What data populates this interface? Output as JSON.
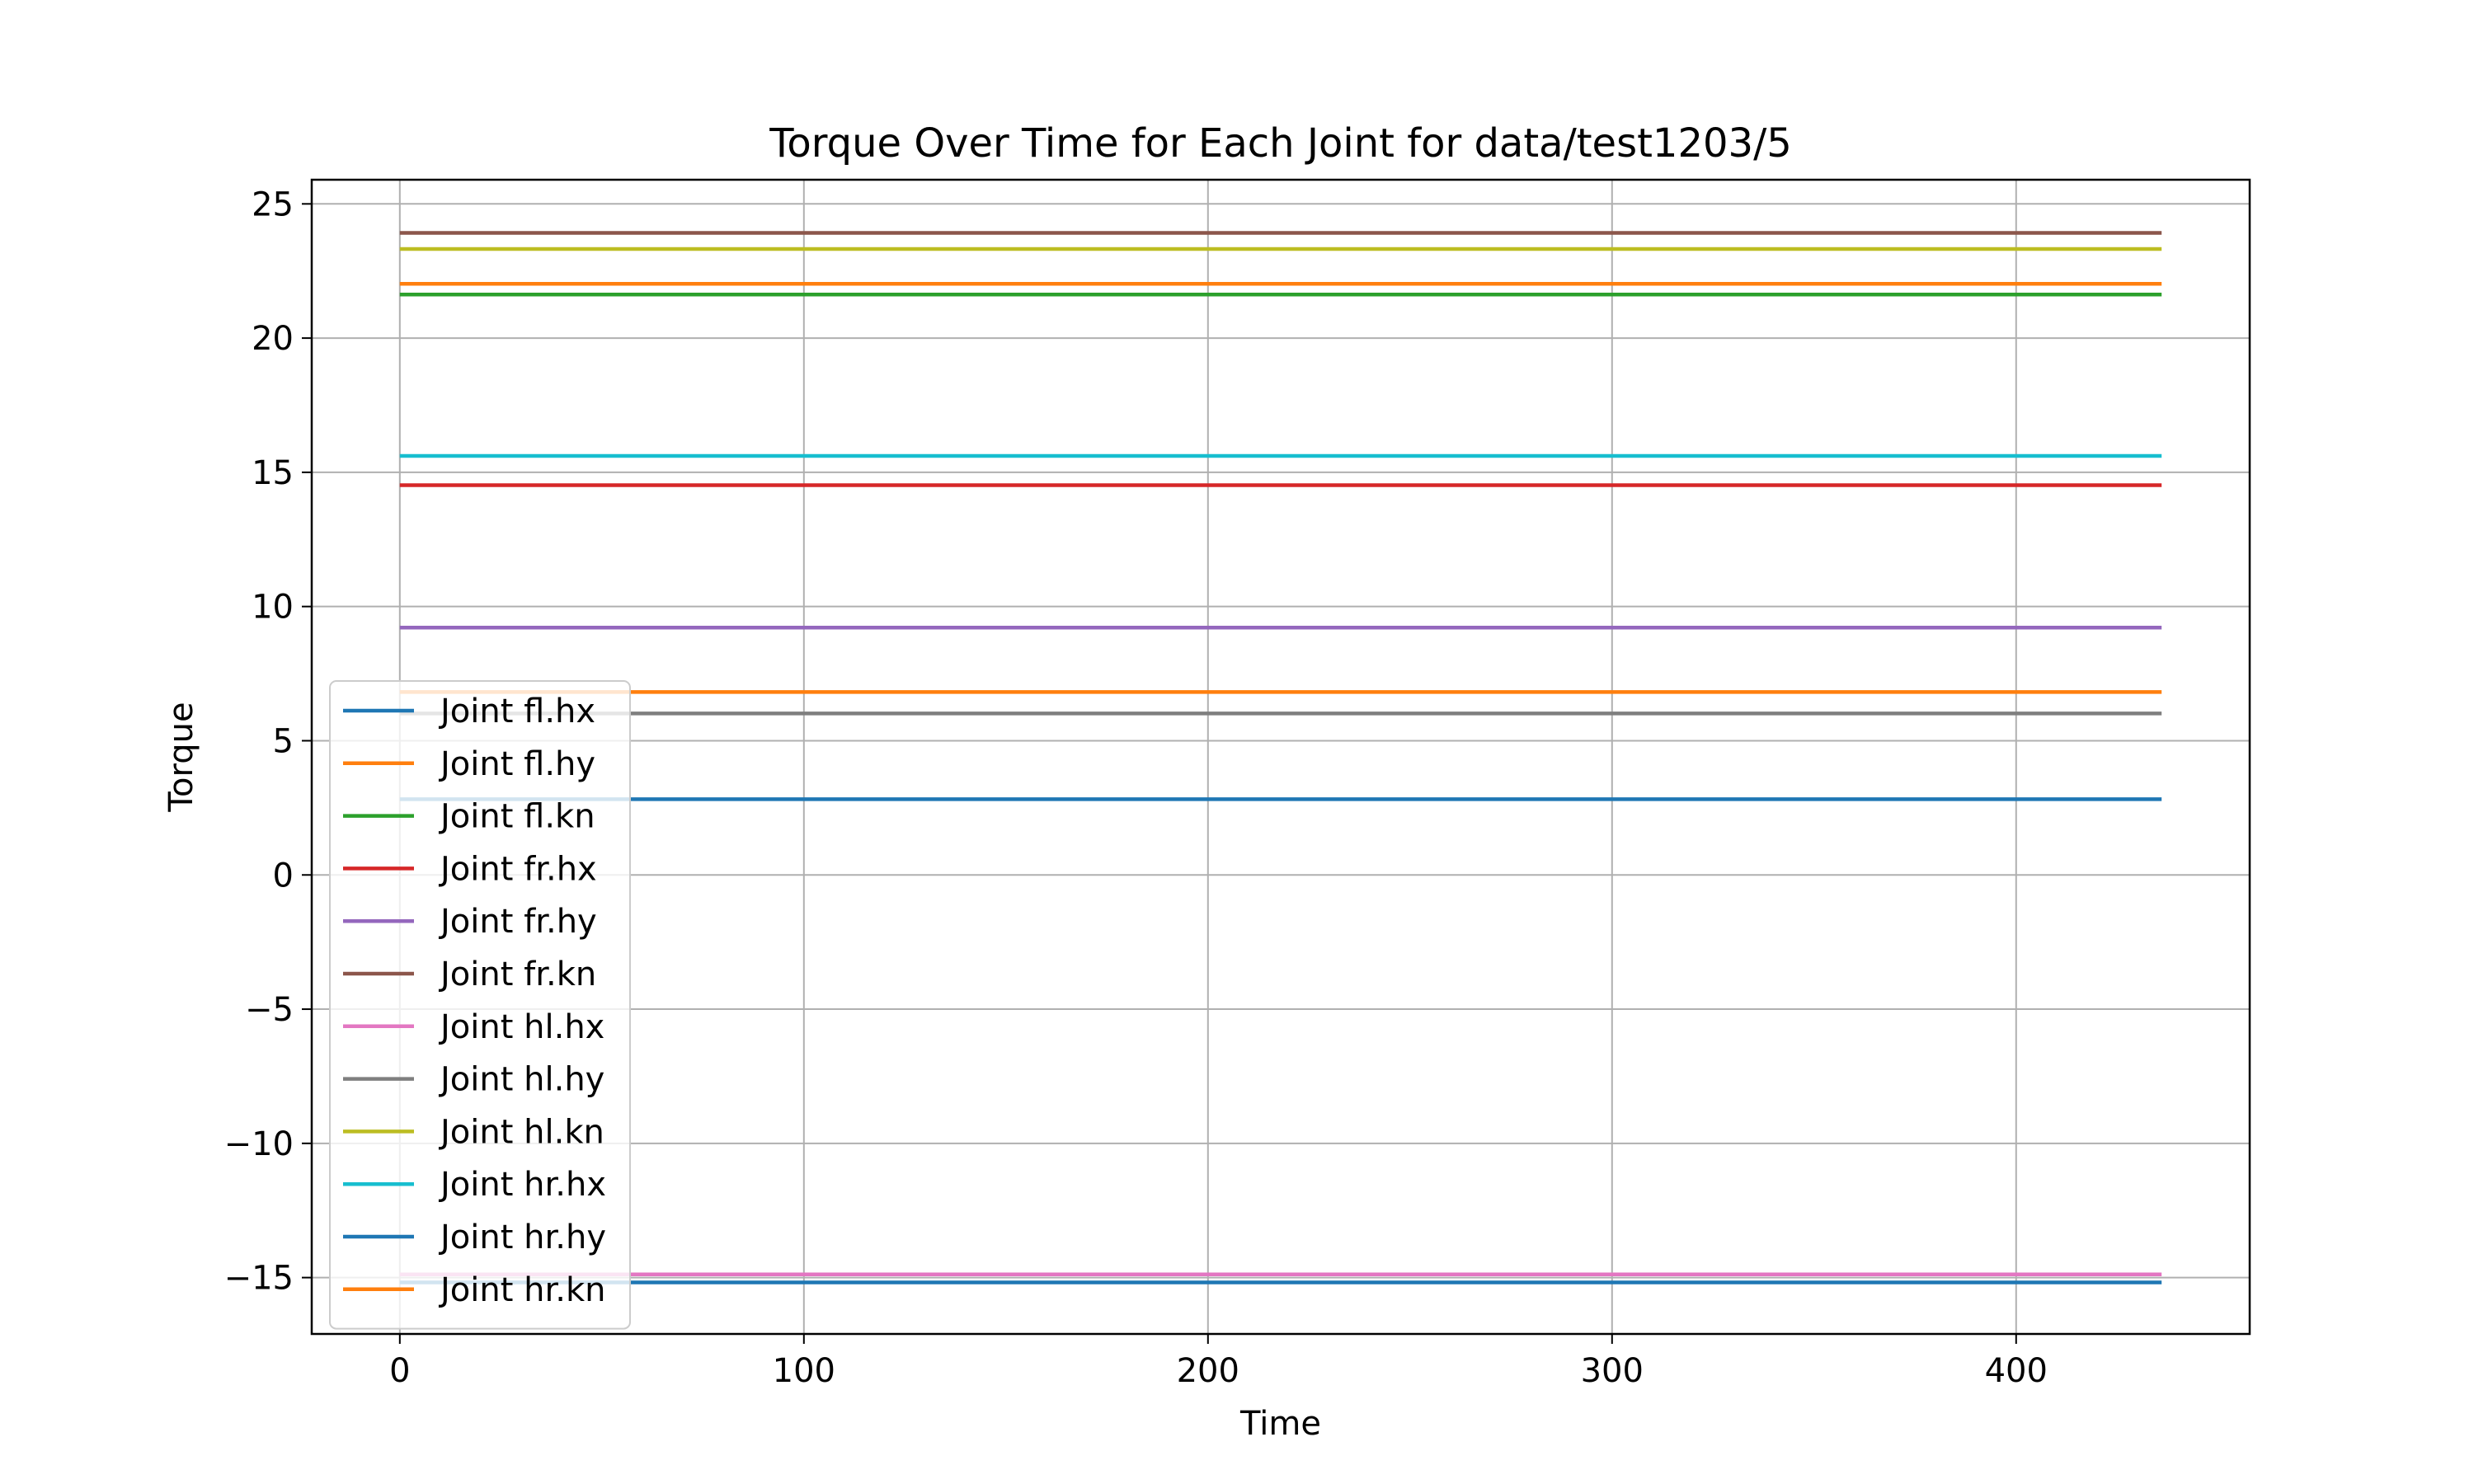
{
  "chart_data": {
    "type": "line",
    "title": "Torque Over Time for Each Joint for data/test1203/5",
    "xlabel": "Time",
    "ylabel": "Torque",
    "xlim": [
      -21.8,
      457.8
    ],
    "ylim": [
      -17.1,
      25.9
    ],
    "xticks": [
      0,
      100,
      200,
      300,
      400
    ],
    "yticks": [
      -15,
      -10,
      -5,
      0,
      5,
      10,
      15,
      20,
      25
    ],
    "xtick_labels": [
      "0",
      "100",
      "200",
      "300",
      "400"
    ],
    "ytick_labels": [
      "−15",
      "−10",
      "−5",
      "0",
      "5",
      "10",
      "15",
      "20",
      "25"
    ],
    "grid": true,
    "legend_position": "lower-left",
    "x_range": [
      0,
      436
    ],
    "series": [
      {
        "name": "Joint fl.hx",
        "color": "#1f77b4",
        "level": 2.8,
        "noise": 0.04
      },
      {
        "name": "Joint fl.hy",
        "color": "#ff7f0e",
        "level": 6.8,
        "noise": 0.03
      },
      {
        "name": "Joint fl.kn",
        "color": "#2ca02c",
        "level": 21.6,
        "noise": 0.05
      },
      {
        "name": "Joint fr.hx",
        "color": "#d62728",
        "level": 14.5,
        "noise": 0.04
      },
      {
        "name": "Joint fr.hy",
        "color": "#9467bd",
        "level": 9.2,
        "noise": 0.03
      },
      {
        "name": "Joint fr.kn",
        "color": "#8c564b",
        "level": 23.9,
        "noise": 0.04
      },
      {
        "name": "Joint hl.hx",
        "color": "#e377c2",
        "level": -14.9,
        "noise": 0.04
      },
      {
        "name": "Joint hl.hy",
        "color": "#7f7f7f",
        "level": 6.0,
        "noise": 0.03
      },
      {
        "name": "Joint hl.kn",
        "color": "#bcbd22",
        "level": 23.3,
        "noise": 0.04
      },
      {
        "name": "Joint hr.hx",
        "color": "#17becf",
        "level": 15.6,
        "noise": 0.02
      },
      {
        "name": "Joint hr.hy",
        "color": "#1f77b4",
        "level": -15.2,
        "noise": 0.04
      },
      {
        "name": "Joint hr.kn",
        "color": "#ff7f0e",
        "level": 22.0,
        "noise": 0.04
      }
    ]
  }
}
